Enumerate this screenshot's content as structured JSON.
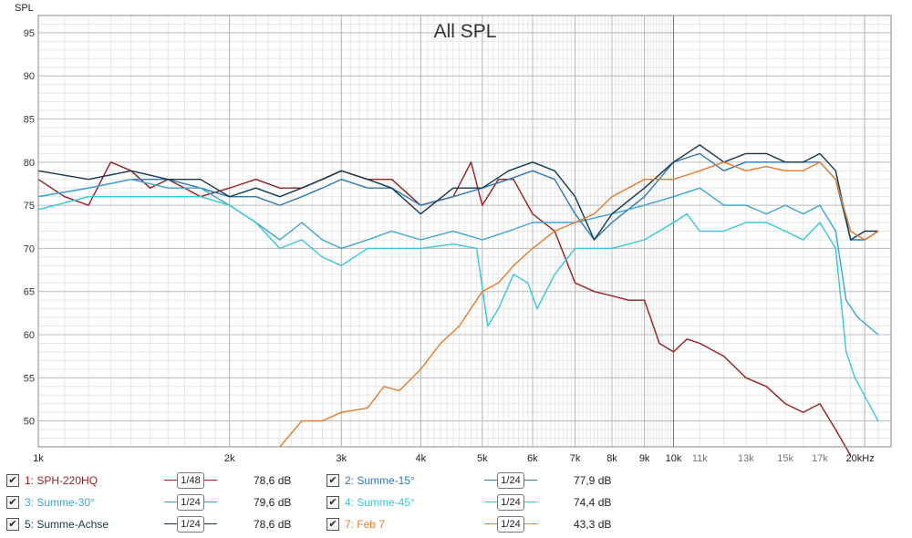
{
  "chart_data": {
    "type": "line",
    "title": "All SPL",
    "ylabel": "SPL",
    "xlabel": "",
    "x_scale": "log",
    "xlim": [
      1000,
      22000
    ],
    "ylim": [
      47,
      97
    ],
    "grid": true,
    "y_ticks": [
      95,
      90,
      85,
      80,
      75,
      70,
      65,
      60,
      55,
      50
    ],
    "x_ticks": [
      {
        "f": 1000,
        "label": "1k"
      },
      {
        "f": 2000,
        "label": "2k"
      },
      {
        "f": 3000,
        "label": "3k"
      },
      {
        "f": 4000,
        "label": "4k"
      },
      {
        "f": 5000,
        "label": "5k"
      },
      {
        "f": 6000,
        "label": "6k"
      },
      {
        "f": 7000,
        "label": "7k"
      },
      {
        "f": 8000,
        "label": "8k"
      },
      {
        "f": 9000,
        "label": "9k"
      },
      {
        "f": 10000,
        "label": "10k"
      },
      {
        "f": 11000,
        "label": "11k"
      },
      {
        "f": 13000,
        "label": "13k"
      },
      {
        "f": 15000,
        "label": "15k"
      },
      {
        "f": 17000,
        "label": "17k"
      },
      {
        "f": 20000,
        "label": "20kHz"
      }
    ],
    "series": [
      {
        "name": "1: SPH-220HQ",
        "color": "#9b1c1c",
        "smoothing": "1/48",
        "level": "78,6 dB",
        "points": [
          [
            1000,
            78
          ],
          [
            1100,
            76
          ],
          [
            1200,
            75
          ],
          [
            1300,
            80
          ],
          [
            1400,
            79
          ],
          [
            1500,
            77
          ],
          [
            1600,
            78
          ],
          [
            1700,
            77
          ],
          [
            1800,
            76
          ],
          [
            2000,
            77
          ],
          [
            2200,
            78
          ],
          [
            2400,
            77
          ],
          [
            2600,
            77
          ],
          [
            2800,
            78
          ],
          [
            3000,
            79
          ],
          [
            3300,
            78
          ],
          [
            3600,
            78
          ],
          [
            4000,
            75
          ],
          [
            4500,
            76
          ],
          [
            4800,
            80
          ],
          [
            5000,
            75
          ],
          [
            5300,
            78
          ],
          [
            5600,
            78
          ],
          [
            6000,
            74
          ],
          [
            6500,
            72
          ],
          [
            7000,
            66
          ],
          [
            7500,
            65
          ],
          [
            8000,
            64.5
          ],
          [
            8500,
            64
          ],
          [
            9000,
            64
          ],
          [
            9500,
            59
          ],
          [
            10000,
            58
          ],
          [
            10500,
            59.5
          ],
          [
            11000,
            59
          ],
          [
            12000,
            57.5
          ],
          [
            13000,
            55
          ],
          [
            14000,
            54
          ],
          [
            15000,
            52
          ],
          [
            16000,
            51
          ],
          [
            17000,
            52
          ],
          [
            18000,
            49
          ],
          [
            19000,
            46
          ]
        ]
      },
      {
        "name": "2: Summe-15°",
        "color": "#2e78b8",
        "smoothing": "1/24",
        "level": "77,9 dB",
        "points": [
          [
            1000,
            76
          ],
          [
            1200,
            77
          ],
          [
            1400,
            78
          ],
          [
            1600,
            78
          ],
          [
            1800,
            77
          ],
          [
            2000,
            76
          ],
          [
            2200,
            76
          ],
          [
            2400,
            75
          ],
          [
            2600,
            76
          ],
          [
            2800,
            77
          ],
          [
            3000,
            78
          ],
          [
            3300,
            77
          ],
          [
            3600,
            77
          ],
          [
            4000,
            75
          ],
          [
            4500,
            76
          ],
          [
            5000,
            77
          ],
          [
            5500,
            78
          ],
          [
            6000,
            79
          ],
          [
            6500,
            78
          ],
          [
            7000,
            74
          ],
          [
            7500,
            71
          ],
          [
            8000,
            73
          ],
          [
            9000,
            76
          ],
          [
            10000,
            80
          ],
          [
            11000,
            81
          ],
          [
            12000,
            79
          ],
          [
            13000,
            80
          ],
          [
            14000,
            80
          ],
          [
            15000,
            80
          ],
          [
            16000,
            80
          ],
          [
            17000,
            80
          ],
          [
            18000,
            78
          ],
          [
            19000,
            71
          ],
          [
            20000,
            71
          ],
          [
            21000,
            72
          ]
        ]
      },
      {
        "name": "3: Summe-30°",
        "color": "#3da3d4",
        "smoothing": "1/24",
        "level": "79,6 dB",
        "points": [
          [
            1000,
            76
          ],
          [
            1200,
            77
          ],
          [
            1400,
            78
          ],
          [
            1600,
            77
          ],
          [
            1800,
            77
          ],
          [
            2000,
            75
          ],
          [
            2200,
            73
          ],
          [
            2400,
            71
          ],
          [
            2600,
            73
          ],
          [
            2800,
            71
          ],
          [
            3000,
            70
          ],
          [
            3300,
            71
          ],
          [
            3600,
            72
          ],
          [
            4000,
            71
          ],
          [
            4500,
            72
          ],
          [
            5000,
            71
          ],
          [
            5500,
            72
          ],
          [
            6000,
            73
          ],
          [
            6500,
            73
          ],
          [
            7000,
            73
          ],
          [
            8000,
            74
          ],
          [
            9000,
            75
          ],
          [
            10000,
            76
          ],
          [
            11000,
            77
          ],
          [
            12000,
            75
          ],
          [
            13000,
            75
          ],
          [
            14000,
            74
          ],
          [
            15000,
            75
          ],
          [
            16000,
            74
          ],
          [
            17000,
            75
          ],
          [
            18000,
            72
          ],
          [
            18700,
            64
          ],
          [
            19500,
            62
          ],
          [
            21000,
            60
          ]
        ]
      },
      {
        "name": "4: Summe-45°",
        "color": "#37c6dc",
        "smoothing": "1/24",
        "level": "74,4 dB",
        "points": [
          [
            1000,
            74.5
          ],
          [
            1200,
            76
          ],
          [
            1400,
            76
          ],
          [
            1600,
            76
          ],
          [
            1800,
            76
          ],
          [
            2000,
            75
          ],
          [
            2200,
            73
          ],
          [
            2400,
            70
          ],
          [
            2600,
            71
          ],
          [
            2800,
            69
          ],
          [
            3000,
            68
          ],
          [
            3300,
            70
          ],
          [
            3600,
            70
          ],
          [
            4000,
            70
          ],
          [
            4500,
            70.5
          ],
          [
            4900,
            70
          ],
          [
            5100,
            61
          ],
          [
            5300,
            63
          ],
          [
            5600,
            67
          ],
          [
            5900,
            66
          ],
          [
            6100,
            63
          ],
          [
            6500,
            67
          ],
          [
            7000,
            70
          ],
          [
            8000,
            70
          ],
          [
            9000,
            71
          ],
          [
            10000,
            73
          ],
          [
            10500,
            74
          ],
          [
            11000,
            72
          ],
          [
            12000,
            72
          ],
          [
            13000,
            73
          ],
          [
            14000,
            73
          ],
          [
            15000,
            72
          ],
          [
            16000,
            71
          ],
          [
            17000,
            73
          ],
          [
            18000,
            70
          ],
          [
            18700,
            58
          ],
          [
            19300,
            55
          ],
          [
            21000,
            50
          ]
        ]
      },
      {
        "name": "5: Summe-Achse",
        "color": "#14384f",
        "smoothing": "1/24",
        "level": "78,6 dB",
        "points": [
          [
            1000,
            79
          ],
          [
            1200,
            78
          ],
          [
            1400,
            79
          ],
          [
            1600,
            78
          ],
          [
            1800,
            78
          ],
          [
            2000,
            76
          ],
          [
            2200,
            77
          ],
          [
            2400,
            76
          ],
          [
            2600,
            77
          ],
          [
            2800,
            78
          ],
          [
            3000,
            79
          ],
          [
            3300,
            78
          ],
          [
            3600,
            77
          ],
          [
            4000,
            74
          ],
          [
            4500,
            77
          ],
          [
            5000,
            77
          ],
          [
            5500,
            79
          ],
          [
            6000,
            80
          ],
          [
            6500,
            79
          ],
          [
            7000,
            76
          ],
          [
            7500,
            71
          ],
          [
            8000,
            74
          ],
          [
            9000,
            77
          ],
          [
            10000,
            80
          ],
          [
            11000,
            82
          ],
          [
            12000,
            80
          ],
          [
            13000,
            81
          ],
          [
            14000,
            81
          ],
          [
            15000,
            80
          ],
          [
            16000,
            80
          ],
          [
            17000,
            81
          ],
          [
            18000,
            79
          ],
          [
            19000,
            71
          ],
          [
            20000,
            72
          ],
          [
            21000,
            72
          ]
        ]
      },
      {
        "name": "7: Feb 7",
        "color": "#e37b2b",
        "smoothing": "1/24",
        "level": "43,3 dB",
        "points": [
          [
            2400,
            47
          ],
          [
            2600,
            50
          ],
          [
            2800,
            50
          ],
          [
            3000,
            51
          ],
          [
            3300,
            51.5
          ],
          [
            3500,
            54
          ],
          [
            3700,
            53.5
          ],
          [
            4000,
            56
          ],
          [
            4300,
            59
          ],
          [
            4600,
            61
          ],
          [
            5000,
            65
          ],
          [
            5300,
            66
          ],
          [
            5600,
            68
          ],
          [
            6000,
            70
          ],
          [
            6500,
            72
          ],
          [
            7000,
            73
          ],
          [
            7500,
            74
          ],
          [
            8000,
            76
          ],
          [
            9000,
            78
          ],
          [
            10000,
            78
          ],
          [
            11000,
            79
          ],
          [
            12000,
            80
          ],
          [
            13000,
            79
          ],
          [
            14000,
            79.5
          ],
          [
            15000,
            79
          ],
          [
            16000,
            79
          ],
          [
            17000,
            80
          ],
          [
            18000,
            78
          ],
          [
            19000,
            72
          ],
          [
            20000,
            71
          ],
          [
            21000,
            72
          ]
        ]
      }
    ]
  }
}
